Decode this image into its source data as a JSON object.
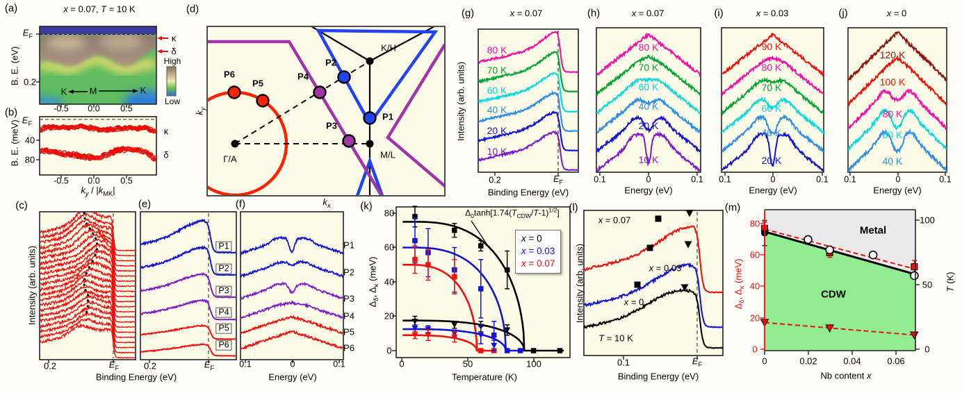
{
  "colors": {
    "background": "#FFFEF9",
    "panel_bg": "#FCFBE7",
    "border": "#222222",
    "magenta": "#F011A5",
    "green": "#00A437",
    "cyan": "#0CD8DE",
    "lightblue": "#2F8FE6",
    "blue": "#1414CE",
    "purple": "#7B1EC8",
    "red": "#EF1010",
    "darkred": "#8C150C",
    "red2": "#E41408",
    "fs_red": "#FF2200",
    "fs_blue": "#2244EE",
    "fs_purple": "#A035A8",
    "metal_gray": "#EAEAEA",
    "cdw_green": "#92EC92",
    "black": "#000000"
  },
  "common": {
    "ef": "<i>E</i><sub>F</sub>"
  },
  "panels": {
    "a": {
      "label": "(a)",
      "title": "<i>x</i> = 0.07, <i>T</i> = 10 K",
      "ylabel": "B. E. (eV)",
      "ytick_ef": "<i>E</i><sub>F</sub>",
      "ytick": "0.2",
      "xticks": [
        "-0.5",
        "0.0",
        "0.5"
      ],
      "inner_left": "K",
      "inner_mid": "M",
      "inner_right": "K",
      "band_kappa": "κ",
      "band_delta": "δ",
      "colorbar_high": "High",
      "colorbar_low": "Low"
    },
    "b": {
      "label": "(b)",
      "ylabel": "B. E. (meV)",
      "ytick_ef": "<i>E</i><sub>F</sub>",
      "yticks": [
        "40",
        "80"
      ],
      "xticks": [
        "-0.5",
        "0.0",
        "0.5"
      ],
      "xlabel": "<i>k<sub>y</sub></i> / |<i>k</i><sub>MK</sub>|",
      "band_kappa": "κ",
      "band_delta": "δ"
    },
    "c": {
      "label": "(c)",
      "ylabel": "Intensity (arb. units)",
      "xtick": "0.2",
      "xtick_ef": "<i>E</i><sub>F</sub>",
      "xlabel_shared": "Binding Energy (eV)"
    },
    "d": {
      "label": "(d)",
      "kx": "<i>k<sub>x</sub></i>",
      "ky": "<i>k<sub>y</sub></i>",
      "points": {
        "p1": "P1",
        "p2": "P2",
        "p3": "P3",
        "p4": "P4",
        "p5": "P5",
        "p6": "P6",
        "kh": "K/H",
        "ml": "M/L",
        "ga": "Γ/A"
      }
    },
    "e": {
      "label": "(e)",
      "xtick": "0.2",
      "xtick_ef": "<i>E</i><sub>F</sub>",
      "curve_labels": [
        "P1",
        "P2",
        "P3",
        "P4",
        "P5",
        "P6"
      ]
    },
    "f": {
      "label": "(f)",
      "xticks": [
        "0.1",
        "0",
        "0.1"
      ],
      "xlabel": "Energy (eV)",
      "curve_labels": [
        "P1",
        "P2",
        "P3",
        "P4",
        "P5",
        "P6"
      ]
    },
    "g": {
      "label": "(g)",
      "title": "<i>x</i> = 0.07",
      "ylabel": "Intensity (arb. units)",
      "xticks": [
        "0.2",
        "<i>E</i><sub>F</sub>"
      ],
      "xlabel": "Binding Energy (eV)",
      "curves": [
        {
          "label": "80 K",
          "color": "magenta"
        },
        {
          "label": "70 K",
          "color": "green"
        },
        {
          "label": "60 K",
          "color": "cyan"
        },
        {
          "label": "40 K",
          "color": "lightblue"
        },
        {
          "label": "20 K",
          "color": "blue"
        },
        {
          "label": "10 K",
          "color": "purple"
        }
      ]
    },
    "h": {
      "label": "(h)",
      "title": "<i>x</i> = 0.07",
      "xticks": [
        "0.1",
        "0",
        "0.1"
      ],
      "xlabel": "Energy (eV)",
      "curves": [
        {
          "label": "80 K",
          "color": "magenta"
        },
        {
          "label": "70 K",
          "color": "green"
        },
        {
          "label": "60 K",
          "color": "cyan"
        },
        {
          "label": "40 K",
          "color": "lightblue"
        },
        {
          "label": "20 K",
          "color": "blue"
        },
        {
          "label": "10 K",
          "color": "purple"
        }
      ]
    },
    "i": {
      "label": "(i)",
      "title": "<i>x</i> = 0.03",
      "xticks": [
        "0.1",
        "0",
        "0.1"
      ],
      "xlabel": "Energy (eV)",
      "curves": [
        {
          "label": "90 K",
          "color": "red"
        },
        {
          "label": "80 K",
          "color": "magenta"
        },
        {
          "label": "70 K",
          "color": "green"
        },
        {
          "label": "60 K",
          "color": "cyan"
        },
        {
          "label": "40 K",
          "color": "lightblue"
        },
        {
          "label": "20 K",
          "color": "blue"
        }
      ]
    },
    "j": {
      "label": "(j)",
      "title": "<i>x</i> = 0",
      "xticks": [
        "0.1",
        "0",
        "0.1"
      ],
      "xlabel": "Energy (eV)",
      "curves": [
        {
          "label": "120 K",
          "color": "darkred"
        },
        {
          "label": "100 K",
          "color": "red2"
        },
        {
          "label": "80 K",
          "color": "magenta"
        },
        {
          "label": "60 K",
          "color": "cyan"
        },
        {
          "label": "40 K",
          "color": "lightblue"
        }
      ]
    },
    "k": {
      "label": "(k)",
      "ylabel": "Δ<sub>δ</sub>, Δ<sub>κ</sub> (meV)",
      "xlabel": "Temperature (K)",
      "yticks": [
        "0",
        "20",
        "40",
        "60",
        "80"
      ],
      "xticks": [
        "0",
        "50",
        "100"
      ],
      "formula": "Δ<sub>0</sub>tanh[1.74(<i>T</i><sub>CDW</sub>/<i>T</i>-1)<sup>1/2</sup>]",
      "legend": [
        {
          "label": "<i>x</i> = 0",
          "color": "black"
        },
        {
          "label": "<i>x</i> = 0.03",
          "color": "blue"
        },
        {
          "label": "<i>x</i> = 0.07",
          "color": "red"
        }
      ]
    },
    "l": {
      "label": "(l)",
      "ylabel": "Intensity (arb. units)",
      "xlabel": "Binding Energy (eV)",
      "xtick": "0.1",
      "xtick_ef": "<i>E</i><sub>F</sub>",
      "curve_labels": [
        "<i>x</i> = 0.07",
        "<i>x</i> = 0.03",
        "<i>x</i> = 0"
      ],
      "note": "<i>T</i> = 10 K"
    },
    "m": {
      "label": "(m)",
      "ylabel_left": "Δ<sub>δ</sub>, Δ<sub>κ</sub> (meV)",
      "ylabel_right": "<i>T</i> (K)",
      "xlabel": "Nb content <i>x</i>",
      "yticks_left": [
        "0",
        "20",
        "40",
        "60",
        "80"
      ],
      "yticks_right": [
        "0",
        "50",
        "100"
      ],
      "xticks": [
        "0",
        "0.02",
        "0.04",
        "0.06"
      ],
      "region_metal": "Metal",
      "region_cdw": "CDW"
    }
  },
  "chart_data": [
    {
      "id": "k",
      "type": "scatter",
      "xlabel": "Temperature (K)",
      "ylabel": "Δδ, Δκ (meV)",
      "xlim": [
        0,
        125
      ],
      "ylim": [
        0,
        85
      ],
      "fit_formula": "Δ0·tanh[1.74(TCDW/T-1)^1/2]",
      "series": [
        {
          "name": "x = 0, Δκ",
          "color": "black",
          "marker": "square",
          "delta0_meV": 75,
          "T_CDW_K": 93,
          "flat_to_K": 123,
          "points": [
            [
              10,
              78,
              6
            ],
            [
              40,
              70,
              4
            ],
            [
              60,
              61,
              3
            ],
            [
              80,
              47,
              11
            ],
            [
              100,
              0,
              0
            ],
            [
              120,
              0,
              0
            ]
          ]
        },
        {
          "name": "x = 0.03, Δκ",
          "color": "blue",
          "marker": "square",
          "delta0_meV": 60,
          "T_CDW_K": 79,
          "flat_to_K": 93,
          "points": [
            [
              10,
              64,
              13
            ],
            [
              20,
              57,
              14
            ],
            [
              40,
              47,
              13
            ],
            [
              60,
              36,
              17
            ],
            [
              70,
              9,
              8
            ],
            [
              80,
              0,
              0
            ],
            [
              90,
              0,
              0
            ]
          ]
        },
        {
          "name": "x = 0.07, Δκ",
          "color": "red",
          "marker": "square",
          "delta0_meV": 50,
          "T_CDW_K": 57,
          "flat_to_K": 72,
          "points": [
            [
              10,
              53,
              8
            ],
            [
              20,
              50,
              9
            ],
            [
              40,
              43,
              10
            ],
            [
              60,
              0,
              0
            ],
            [
              70,
              0,
              0
            ]
          ]
        },
        {
          "name": "x = 0, Δδ",
          "color": "black",
          "marker": "triangle-down",
          "delta0_meV": 17.5,
          "T_CDW_K": 93,
          "flat_to_K": 0,
          "points": [
            [
              10,
              17,
              3
            ],
            [
              40,
              15,
              2
            ],
            [
              60,
              14,
              3
            ],
            [
              80,
              12,
              3
            ]
          ]
        },
        {
          "name": "x = 0.03, Δδ",
          "color": "blue",
          "marker": "triangle-down",
          "delta0_meV": 12.5,
          "T_CDW_K": 79,
          "flat_to_K": 0,
          "points": [
            [
              10,
              13,
              2
            ],
            [
              20,
              12.5,
              2
            ],
            [
              40,
              10,
              2
            ],
            [
              60,
              9,
              5
            ],
            [
              70,
              3,
              3
            ]
          ]
        },
        {
          "name": "x = 0.07, Δδ",
          "color": "red",
          "marker": "triangle-down",
          "delta0_meV": 9,
          "T_CDW_K": 57,
          "flat_to_K": 0,
          "points": [
            [
              10,
              9,
              2
            ],
            [
              20,
              9,
              3
            ],
            [
              40,
              8,
              3
            ]
          ]
        }
      ]
    },
    {
      "id": "m",
      "type": "phase-diagram",
      "xlabel": "Nb content x",
      "xlim": [
        0,
        0.0695
      ],
      "ylim_left_meV": [
        0,
        88
      ],
      "ylim_right_K": [
        0,
        108
      ],
      "phase_boundary_K": [
        [
          0,
          91
        ],
        [
          0.0695,
          58
        ]
      ],
      "gap_dashed_line_K": [
        [
          0,
          93
        ],
        [
          0.0695,
          62
        ]
      ],
      "delta_dashed_line_meV": [
        [
          0,
          17
        ],
        [
          0.0695,
          9
        ]
      ],
      "regions": [
        "Metal",
        "CDW"
      ],
      "series": [
        {
          "name": "Δκ",
          "axis": "left_meV",
          "color": "red",
          "marker": "square",
          "points": [
            [
              0,
              77,
              4
            ],
            [
              0.03,
              61.5,
              3
            ],
            [
              0.069,
              52.5,
              4
            ]
          ]
        },
        {
          "name": "TCDW (filled)",
          "axis": "left_meV",
          "color": "black",
          "marker": "circle",
          "points": [
            [
              0,
              74,
              8
            ]
          ]
        },
        {
          "name": "TCDW (open)",
          "axis": "right_K",
          "color": "white",
          "marker": "circle-open",
          "points": [
            [
              0.02,
              85,
              0
            ],
            [
              0.03,
              77,
              0
            ],
            [
              0.05,
              73,
              0
            ],
            [
              0.069,
              57,
              0
            ]
          ]
        },
        {
          "name": "Δδ",
          "axis": "left_meV",
          "color": "red",
          "marker": "triangle-down",
          "points": [
            [
              0,
              17,
              0
            ],
            [
              0.03,
              13.5,
              0
            ],
            [
              0.069,
              9,
              0
            ]
          ]
        }
      ]
    },
    {
      "id": "g",
      "type": "line",
      "title": "x = 0.07",
      "xlabel": "Binding Energy (eV)",
      "curves": [
        "80 K",
        "70 K",
        "60 K",
        "40 K",
        "20 K",
        "10 K"
      ],
      "xticks": [
        "0.2",
        "EF"
      ]
    },
    {
      "id": "h",
      "type": "line",
      "title": "x = 0.07",
      "xlabel": "Energy (eV)",
      "xrange_eV": [
        -0.1,
        0.1
      ],
      "curves": [
        "80 K",
        "70 K",
        "60 K",
        "40 K",
        "20 K",
        "10 K"
      ]
    },
    {
      "id": "i",
      "type": "line",
      "title": "x = 0.03",
      "xlabel": "Energy (eV)",
      "xrange_eV": [
        -0.1,
        0.1
      ],
      "curves": [
        "90 K",
        "80 K",
        "70 K",
        "60 K",
        "40 K",
        "20 K"
      ]
    },
    {
      "id": "j",
      "type": "line",
      "title": "x = 0",
      "xlabel": "Energy (eV)",
      "xrange_eV": [
        -0.1,
        0.1
      ],
      "curves": [
        "120 K",
        "100 K",
        "80 K",
        "60 K",
        "40 K"
      ]
    },
    {
      "id": "e",
      "type": "line",
      "xlabel": "Binding Energy (eV)",
      "curves": [
        "P1",
        "P2",
        "P3",
        "P4",
        "P5",
        "P6"
      ]
    },
    {
      "id": "f",
      "type": "line",
      "xlabel": "Energy (eV)",
      "curves": [
        "P1",
        "P2",
        "P3",
        "P4",
        "P5",
        "P6"
      ]
    },
    {
      "id": "b",
      "type": "scatter",
      "xlabel": "ky / |kMK|",
      "ylabel": "B. E. (meV)",
      "bands": [
        {
          "name": "κ",
          "BE_meV_approx": 18
        },
        {
          "name": "δ",
          "BE_meV_approx": 63
        }
      ]
    }
  ]
}
